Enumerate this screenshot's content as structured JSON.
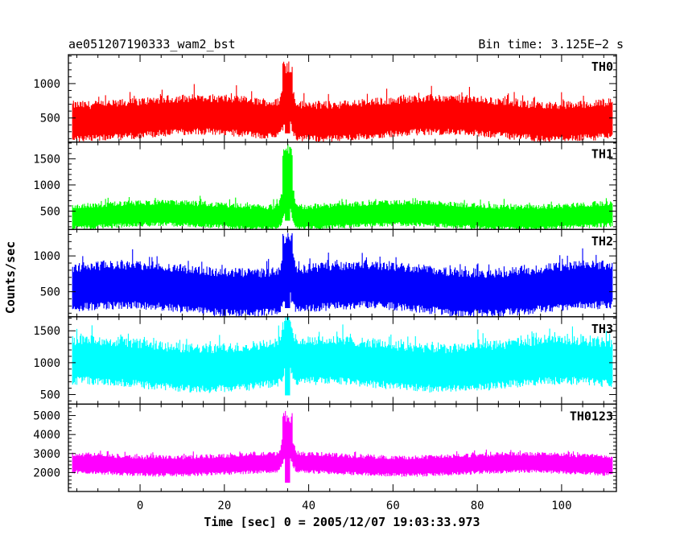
{
  "chart_data": {
    "type": "line",
    "title_left": "ae051207190333_wam2_bst",
    "title_right": "Bin time: 3.125E−2 s",
    "xlabel": "Time [sec] 0 = 2005/12/07 19:03:33.973",
    "ylabel": "Counts/sec",
    "xlim": [
      -17,
      113
    ],
    "x_ticks": [
      0,
      20,
      40,
      60,
      80,
      100
    ],
    "x_tick_labels": [
      "0",
      "20",
      "40",
      "60",
      "80",
      "100"
    ],
    "data_x_range": [
      -16,
      112
    ],
    "burst_time": 35,
    "grid": false,
    "panels": [
      {
        "name": "TH0",
        "color": "#ff0000",
        "ylim": [
          150,
          1420
        ],
        "yticks": [
          500,
          1000
        ],
        "ytick_labels": [
          "500",
          "1000"
        ],
        "mean": 480,
        "noise": 200,
        "peak": 1350,
        "y_edge_ticks": true
      },
      {
        "name": "TH1",
        "color": "#00ff00",
        "ylim": [
          150,
          1820
        ],
        "yticks": [
          500,
          1000,
          1500
        ],
        "ytick_labels": [
          "500",
          "1000",
          "1500"
        ],
        "mean": 400,
        "noise": 170,
        "peak": 1780
      },
      {
        "name": "TH2",
        "color": "#0000ff",
        "ylim": [
          150,
          1370
        ],
        "yticks": [
          500,
          1000
        ],
        "ytick_labels": [
          "500",
          "1000"
        ],
        "mean": 520,
        "noise": 230,
        "peak": 1320
      },
      {
        "name": "TH3",
        "color": "#00ffff",
        "ylim": [
          350,
          1720
        ],
        "yticks": [
          500,
          1000,
          1500
        ],
        "ytick_labels": [
          "500",
          "1000",
          "1500"
        ],
        "mean": 950,
        "noise": 260,
        "peak": 1650
      },
      {
        "name": "TH0123",
        "color": "#ff00ff",
        "ylim": [
          1000,
          5600
        ],
        "yticks": [
          2000,
          3000,
          4000,
          5000
        ],
        "ytick_labels": [
          "2000",
          "3000",
          "4000",
          "5000"
        ],
        "mean": 2400,
        "noise": 380,
        "peak": 5400
      }
    ]
  }
}
